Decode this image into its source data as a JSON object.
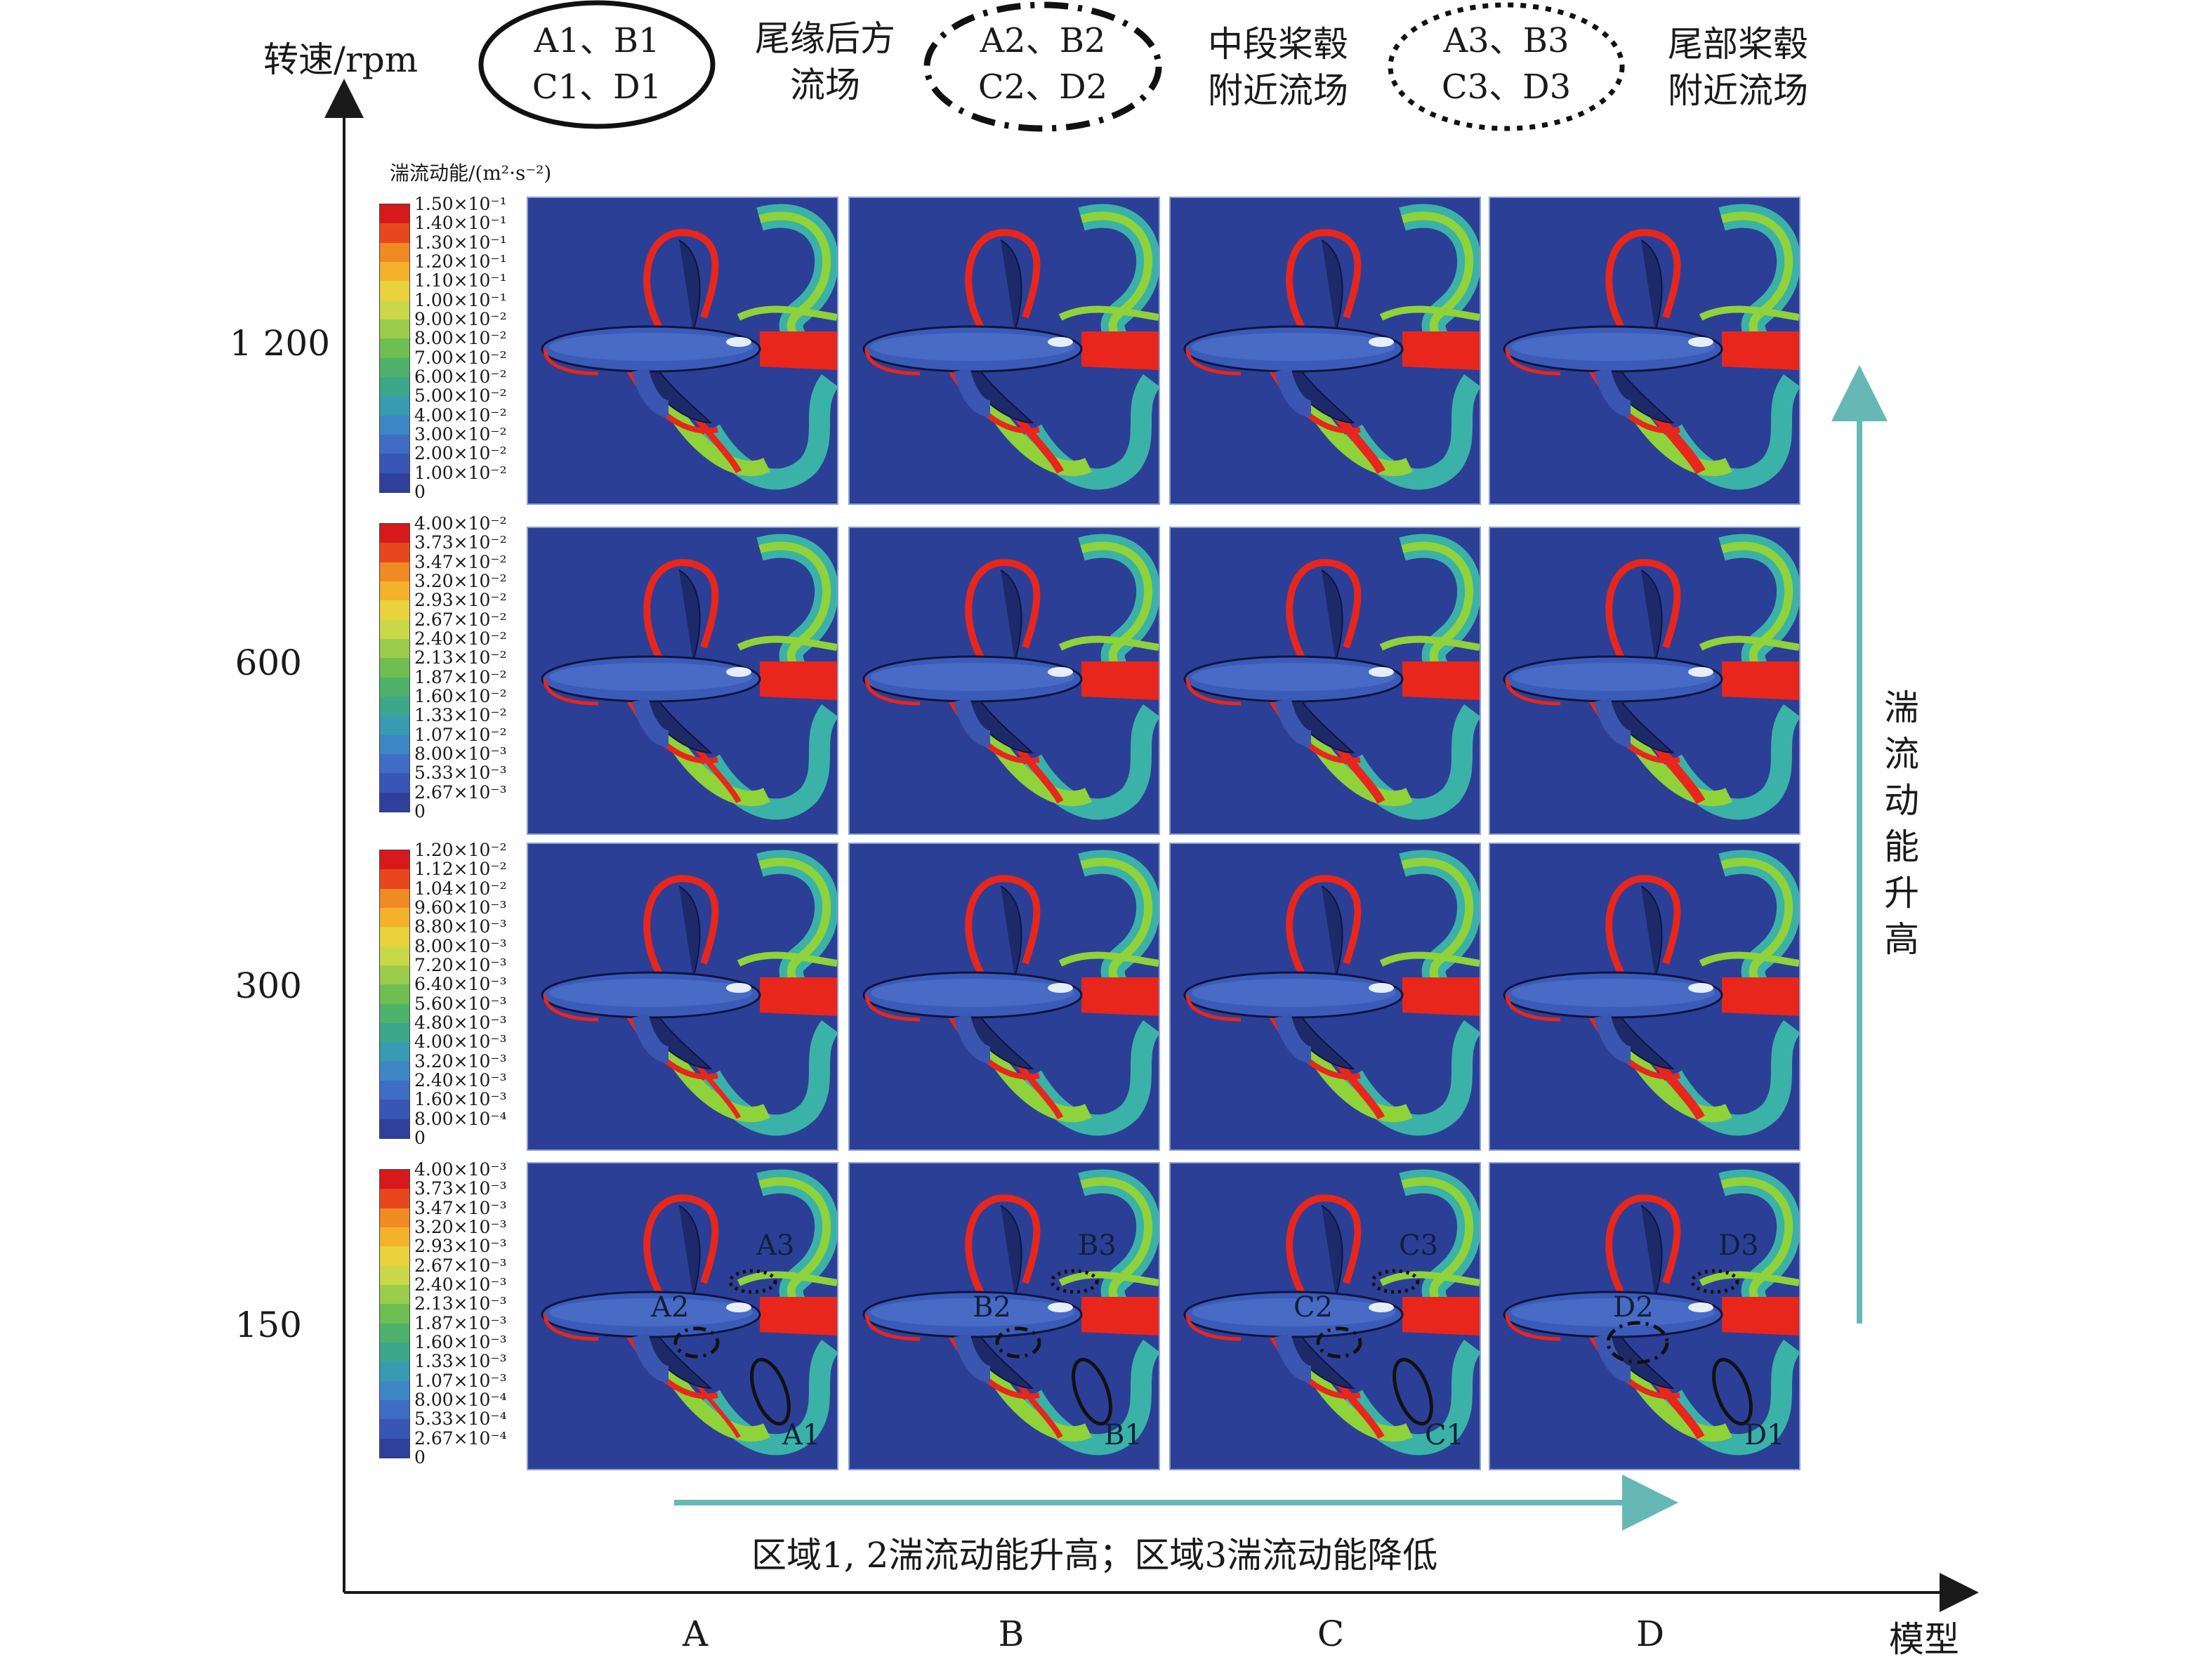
{
  "axes": {
    "y_label": "转速/rpm",
    "x_label": "模型",
    "y_ticks": [
      "1 200",
      "600",
      "300",
      "150"
    ],
    "x_ticks": [
      "A",
      "B",
      "C",
      "D"
    ]
  },
  "legend": [
    {
      "style": "solid",
      "line1": "A1、B1",
      "line2": "C1、D1",
      "desc1": "尾缘后方",
      "desc2": "流场"
    },
    {
      "style": "dash-dot",
      "line1": "A2、B2",
      "line2": "C2、D2",
      "desc1": "中段桨毂",
      "desc2": "附近流场"
    },
    {
      "style": "dotted",
      "line1": "A3、B3",
      "line2": "C3、D3",
      "desc1": "尾部桨毂",
      "desc2": "附近流场"
    }
  ],
  "colorbar_title": "湍流动能/(m²·s⁻²)",
  "colorbars": [
    {
      "row": "1 200",
      "ticks": [
        "1.50×10⁻¹",
        "1.40×10⁻¹",
        "1.30×10⁻¹",
        "1.20×10⁻¹",
        "1.10×10⁻¹",
        "1.00×10⁻¹",
        "9.00×10⁻²",
        "8.00×10⁻²",
        "7.00×10⁻²",
        "6.00×10⁻²",
        "5.00×10⁻²",
        "4.00×10⁻²",
        "3.00×10⁻²",
        "2.00×10⁻²",
        "1.00×10⁻²",
        "0"
      ]
    },
    {
      "row": "600",
      "ticks": [
        "4.00×10⁻²",
        "3.73×10⁻²",
        "3.47×10⁻²",
        "3.20×10⁻²",
        "2.93×10⁻²",
        "2.67×10⁻²",
        "2.40×10⁻²",
        "2.13×10⁻²",
        "1.87×10⁻²",
        "1.60×10⁻²",
        "1.33×10⁻²",
        "1.07×10⁻²",
        "8.00×10⁻³",
        "5.33×10⁻³",
        "2.67×10⁻³",
        "0"
      ]
    },
    {
      "row": "300",
      "ticks": [
        "1.20×10⁻²",
        "1.12×10⁻²",
        "1.04×10⁻²",
        "9.60×10⁻³",
        "8.80×10⁻³",
        "8.00×10⁻³",
        "7.20×10⁻³",
        "6.40×10⁻³",
        "5.60×10⁻³",
        "4.80×10⁻³",
        "4.00×10⁻³",
        "3.20×10⁻³",
        "2.40×10⁻³",
        "1.60×10⁻³",
        "8.00×10⁻⁴",
        "0"
      ]
    },
    {
      "row": "150",
      "ticks": [
        "4.00×10⁻³",
        "3.73×10⁻³",
        "3.47×10⁻³",
        "3.20×10⁻³",
        "2.93×10⁻³",
        "2.67×10⁻³",
        "2.40×10⁻³",
        "2.13×10⁻³",
        "1.87×10⁻³",
        "1.60×10⁻³",
        "1.33×10⁻³",
        "1.07×10⁻³",
        "8.00×10⁻⁴",
        "5.33×10⁻⁴",
        "2.67×10⁻⁴",
        "0"
      ]
    }
  ],
  "region_labels": [
    {
      "model": "A",
      "r1": "A1",
      "r2": "A2",
      "r3": "A3"
    },
    {
      "model": "B",
      "r1": "B1",
      "r2": "B2",
      "r3": "B3"
    },
    {
      "model": "C",
      "r1": "C1",
      "r2": "C2",
      "r3": "C3"
    },
    {
      "model": "D",
      "r1": "D1",
      "r2": "D2",
      "r3": "D3"
    }
  ],
  "right_note_chars": [
    "湍",
    "流",
    "动",
    "能",
    "升",
    "高"
  ],
  "bottom_note": "区域1, 2湍流动能升高；区域3湍流动能降低",
  "colors": {
    "background_field": "#2c3f96",
    "hull": "#3b5bb8",
    "wake_red": "#e8261c",
    "wake_green": "#8fd23a",
    "wake_cyan": "#3dbfa8",
    "arrow_teal": "#66b8b6"
  }
}
